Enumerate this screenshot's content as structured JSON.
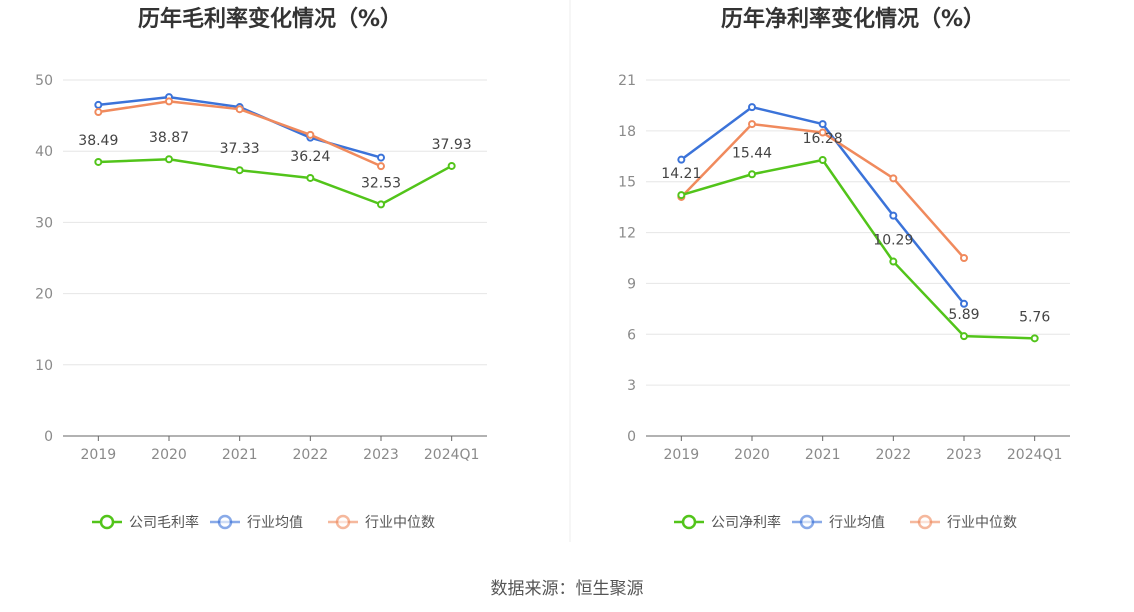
{
  "source_label": "数据来源：恒生聚源",
  "chart_data": [
    {
      "type": "line",
      "title": "历年毛利率变化情况（%）",
      "categories": [
        "2019",
        "2020",
        "2021",
        "2022",
        "2023",
        "2024Q1"
      ],
      "ylim": [
        0,
        50
      ],
      "yticks": [
        0,
        10,
        20,
        30,
        40,
        50
      ],
      "grid": true,
      "legend": "bottom",
      "series": [
        {
          "name": "公司毛利率",
          "color": "#52c41a",
          "labeled": true,
          "values": [
            38.49,
            38.87,
            37.33,
            36.24,
            32.53,
            37.93
          ]
        },
        {
          "name": "行业均值",
          "color": "#3b73d9",
          "labeled": false,
          "values": [
            46.5,
            47.6,
            46.2,
            41.9,
            39.1,
            null
          ]
        },
        {
          "name": "行业中位数",
          "color": "#f08a5d",
          "labeled": false,
          "values": [
            45.5,
            47.0,
            45.9,
            42.3,
            37.9,
            null
          ]
        }
      ]
    },
    {
      "type": "line",
      "title": "历年净利率变化情况（%）",
      "categories": [
        "2019",
        "2020",
        "2021",
        "2022",
        "2023",
        "2024Q1"
      ],
      "ylim": [
        0,
        21
      ],
      "yticks": [
        0,
        3,
        6,
        9,
        12,
        15,
        18,
        21
      ],
      "grid": true,
      "legend": "bottom",
      "series": [
        {
          "name": "公司净利率",
          "color": "#52c41a",
          "labeled": true,
          "values": [
            14.21,
            15.44,
            16.28,
            10.29,
            5.89,
            5.76
          ]
        },
        {
          "name": "行业均值",
          "color": "#3b73d9",
          "labeled": false,
          "values": [
            16.3,
            19.4,
            18.4,
            13.0,
            7.8,
            null
          ]
        },
        {
          "name": "行业中位数",
          "color": "#f08a5d",
          "labeled": false,
          "values": [
            14.1,
            18.4,
            17.9,
            15.2,
            10.5,
            null
          ]
        }
      ]
    }
  ]
}
